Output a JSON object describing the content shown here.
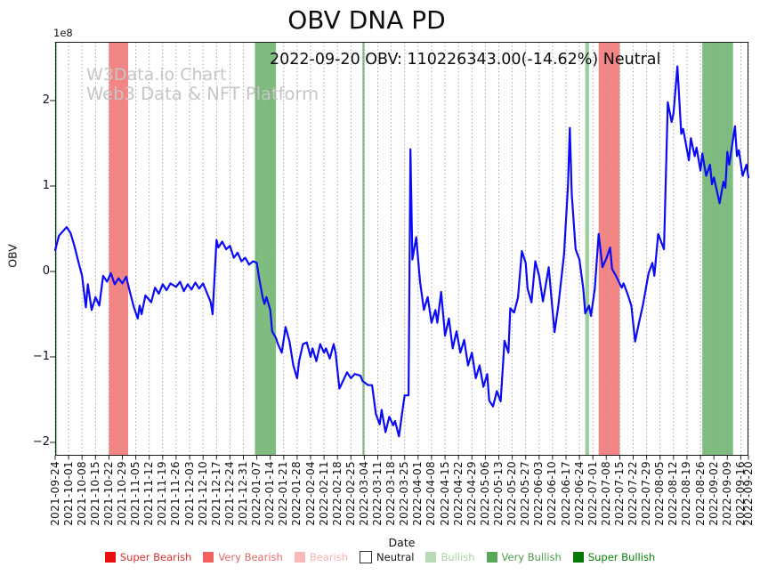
{
  "header": {
    "title": "OBV DNA PD",
    "subtitle": "2022-09-20 OBV: 110226343.00(-14.62%) Neutral"
  },
  "watermark": {
    "line1": "W3Data.io Chart",
    "line2": "Web3 Data & NFT Platform"
  },
  "chart_data": {
    "type": "line",
    "title": "OBV DNA PD",
    "subtitle": "2022-09-20 OBV: 110226343.00(-14.62%) Neutral",
    "xlabel": "Date",
    "ylabel": "OBV",
    "y_offset_label": "1e8",
    "y_units": "1e8",
    "ylim": [
      -2.16,
      2.69
    ],
    "yticks": [
      -2,
      -1,
      0,
      1,
      2
    ],
    "grid": "vertical-dotted",
    "grid_color": "#999999",
    "x_start": "2021-09-24",
    "x_end": "2022-09-20",
    "xtick_labels": [
      "2021-09-24",
      "2021-10-01",
      "2021-10-08",
      "2021-10-15",
      "2021-10-22",
      "2021-10-29",
      "2021-11-05",
      "2021-11-12",
      "2021-11-19",
      "2021-11-26",
      "2021-12-03",
      "2021-12-10",
      "2021-12-17",
      "2021-12-24",
      "2021-12-31",
      "2022-01-07",
      "2022-01-14",
      "2022-01-21",
      "2022-01-28",
      "2022-02-04",
      "2022-02-11",
      "2022-02-18",
      "2022-02-25",
      "2022-03-04",
      "2022-03-11",
      "2022-03-18",
      "2022-03-25",
      "2022-04-01",
      "2022-04-08",
      "2022-04-15",
      "2022-04-22",
      "2022-04-29",
      "2022-05-06",
      "2022-05-13",
      "2022-05-20",
      "2022-05-27",
      "2022-06-03",
      "2022-06-10",
      "2022-06-17",
      "2022-06-24",
      "2022-07-01",
      "2022-07-08",
      "2022-07-15",
      "2022-07-22",
      "2022-07-29",
      "2022-08-05",
      "2022-08-12",
      "2022-08-19",
      "2022-08-26",
      "2022-09-02",
      "2022-09-09",
      "2022-09-16",
      "2022-09-20"
    ],
    "line_color": "#0b0bf5",
    "series": [
      {
        "name": "OBV",
        "points": [
          [
            "2021-09-24",
            0.25
          ],
          [
            "2021-09-26",
            0.42
          ],
          [
            "2021-09-30",
            0.52
          ],
          [
            "2021-10-02",
            0.45
          ],
          [
            "2021-10-04",
            0.3
          ],
          [
            "2021-10-06",
            0.12
          ],
          [
            "2021-10-08",
            -0.05
          ],
          [
            "2021-10-10",
            -0.42
          ],
          [
            "2021-10-11",
            -0.15
          ],
          [
            "2021-10-13",
            -0.45
          ],
          [
            "2021-10-15",
            -0.3
          ],
          [
            "2021-10-17",
            -0.4
          ],
          [
            "2021-10-19",
            -0.05
          ],
          [
            "2021-10-21",
            -0.12
          ],
          [
            "2021-10-23",
            -0.02
          ],
          [
            "2021-10-25",
            -0.15
          ],
          [
            "2021-10-27",
            -0.08
          ],
          [
            "2021-10-29",
            -0.14
          ],
          [
            "2021-10-31",
            -0.06
          ],
          [
            "2021-11-02",
            -0.25
          ],
          [
            "2021-11-04",
            -0.42
          ],
          [
            "2021-11-06",
            -0.55
          ],
          [
            "2021-11-07",
            -0.4
          ],
          [
            "2021-11-08",
            -0.5
          ],
          [
            "2021-11-10",
            -0.28
          ],
          [
            "2021-11-13",
            -0.36
          ],
          [
            "2021-11-15",
            -0.19
          ],
          [
            "2021-11-17",
            -0.26
          ],
          [
            "2021-11-19",
            -0.15
          ],
          [
            "2021-11-21",
            -0.22
          ],
          [
            "2021-11-23",
            -0.14
          ],
          [
            "2021-11-26",
            -0.18
          ],
          [
            "2021-11-28",
            -0.12
          ],
          [
            "2021-11-30",
            -0.23
          ],
          [
            "2021-12-02",
            -0.15
          ],
          [
            "2021-12-04",
            -0.21
          ],
          [
            "2021-12-06",
            -0.13
          ],
          [
            "2021-12-08",
            -0.2
          ],
          [
            "2021-12-10",
            -0.14
          ],
          [
            "2021-12-12",
            -0.25
          ],
          [
            "2021-12-14",
            -0.36
          ],
          [
            "2021-12-15",
            -0.5
          ],
          [
            "2021-12-17",
            0.37
          ],
          [
            "2021-12-18",
            0.28
          ],
          [
            "2021-12-20",
            0.35
          ],
          [
            "2021-12-22",
            0.26
          ],
          [
            "2021-12-24",
            0.3
          ],
          [
            "2021-12-26",
            0.16
          ],
          [
            "2021-12-28",
            0.22
          ],
          [
            "2021-12-30",
            0.12
          ],
          [
            "2022-01-01",
            0.16
          ],
          [
            "2022-01-03",
            0.08
          ],
          [
            "2022-01-05",
            0.12
          ],
          [
            "2022-01-07",
            0.1
          ],
          [
            "2022-01-08",
            -0.05
          ],
          [
            "2022-01-10",
            -0.3
          ],
          [
            "2022-01-11",
            -0.38
          ],
          [
            "2022-01-12",
            -0.3
          ],
          [
            "2022-01-14",
            -0.45
          ],
          [
            "2022-01-15",
            -0.7
          ],
          [
            "2022-01-17",
            -0.78
          ],
          [
            "2022-01-18",
            -0.85
          ],
          [
            "2022-01-20",
            -0.95
          ],
          [
            "2022-01-22",
            -0.65
          ],
          [
            "2022-01-24",
            -0.82
          ],
          [
            "2022-01-26",
            -1.1
          ],
          [
            "2022-01-28",
            -1.25
          ],
          [
            "2022-01-29",
            -1.05
          ],
          [
            "2022-01-31",
            -0.85
          ],
          [
            "2022-02-02",
            -0.83
          ],
          [
            "2022-02-04",
            -1.0
          ],
          [
            "2022-02-05",
            -0.9
          ],
          [
            "2022-02-07",
            -1.05
          ],
          [
            "2022-02-09",
            -0.85
          ],
          [
            "2022-02-11",
            -0.95
          ],
          [
            "2022-02-12",
            -0.9
          ],
          [
            "2022-02-14",
            -1.02
          ],
          [
            "2022-02-16",
            -0.85
          ],
          [
            "2022-02-17",
            -0.95
          ],
          [
            "2022-02-19",
            -1.37
          ],
          [
            "2022-02-23",
            -1.18
          ],
          [
            "2022-02-25",
            -1.25
          ],
          [
            "2022-02-27",
            -1.2
          ],
          [
            "2022-03-02",
            -1.22
          ],
          [
            "2022-03-03",
            -1.28
          ],
          [
            "2022-03-06",
            -1.33
          ],
          [
            "2022-03-08",
            -1.33
          ],
          [
            "2022-03-10",
            -1.67
          ],
          [
            "2022-03-12",
            -1.79
          ],
          [
            "2022-03-13",
            -1.62
          ],
          [
            "2022-03-15",
            -1.88
          ],
          [
            "2022-03-17",
            -1.7
          ],
          [
            "2022-03-19",
            -1.8
          ],
          [
            "2022-03-20",
            -1.75
          ],
          [
            "2022-03-22",
            -1.93
          ],
          [
            "2022-03-24",
            -1.6
          ],
          [
            "2022-03-25",
            -1.45
          ],
          [
            "2022-03-27",
            -1.45
          ],
          [
            "2022-03-28",
            1.43
          ],
          [
            "2022-03-29",
            0.14
          ],
          [
            "2022-03-31",
            0.4
          ],
          [
            "2022-04-02",
            -0.12
          ],
          [
            "2022-04-04",
            -0.45
          ],
          [
            "2022-04-06",
            -0.3
          ],
          [
            "2022-04-08",
            -0.6
          ],
          [
            "2022-04-10",
            -0.45
          ],
          [
            "2022-04-11",
            -0.6
          ],
          [
            "2022-04-13",
            -0.24
          ],
          [
            "2022-04-15",
            -0.75
          ],
          [
            "2022-04-17",
            -0.55
          ],
          [
            "2022-04-19",
            -0.9
          ],
          [
            "2022-04-21",
            -0.7
          ],
          [
            "2022-04-23",
            -0.95
          ],
          [
            "2022-04-25",
            -0.8
          ],
          [
            "2022-04-27",
            -1.1
          ],
          [
            "2022-04-29",
            -0.95
          ],
          [
            "2022-05-01",
            -1.25
          ],
          [
            "2022-05-03",
            -1.1
          ],
          [
            "2022-05-05",
            -1.35
          ],
          [
            "2022-05-07",
            -1.2
          ],
          [
            "2022-05-08",
            -1.51
          ],
          [
            "2022-05-10",
            -1.58
          ],
          [
            "2022-05-12",
            -1.4
          ],
          [
            "2022-05-14",
            -1.52
          ],
          [
            "2022-05-16",
            -0.81
          ],
          [
            "2022-05-18",
            -0.95
          ],
          [
            "2022-05-19",
            -0.43
          ],
          [
            "2022-05-21",
            -0.48
          ],
          [
            "2022-05-23",
            -0.3
          ],
          [
            "2022-05-25",
            0.24
          ],
          [
            "2022-05-27",
            0.1
          ],
          [
            "2022-05-28",
            -0.2
          ],
          [
            "2022-05-30",
            -0.36
          ],
          [
            "2022-06-01",
            0.12
          ],
          [
            "2022-06-03",
            -0.05
          ],
          [
            "2022-06-05",
            -0.35
          ],
          [
            "2022-06-08",
            0.05
          ],
          [
            "2022-06-09",
            -0.2
          ],
          [
            "2022-06-11",
            -0.71
          ],
          [
            "2022-06-13",
            -0.4
          ],
          [
            "2022-06-16",
            0.2
          ],
          [
            "2022-06-18",
            1.0
          ],
          [
            "2022-06-19",
            1.68
          ],
          [
            "2022-06-20",
            0.9
          ],
          [
            "2022-06-22",
            0.26
          ],
          [
            "2022-06-24",
            0.14
          ],
          [
            "2022-06-26",
            -0.2
          ],
          [
            "2022-06-27",
            -0.49
          ],
          [
            "2022-06-29",
            -0.4
          ],
          [
            "2022-06-30",
            -0.52
          ],
          [
            "2022-07-02",
            -0.2
          ],
          [
            "2022-07-04",
            0.44
          ],
          [
            "2022-07-06",
            0.05
          ],
          [
            "2022-07-08",
            0.15
          ],
          [
            "2022-07-10",
            0.28
          ],
          [
            "2022-07-11",
            0.03
          ],
          [
            "2022-07-13",
            -0.05
          ],
          [
            "2022-07-16",
            -0.19
          ],
          [
            "2022-07-17",
            -0.14
          ],
          [
            "2022-07-19",
            -0.26
          ],
          [
            "2022-07-21",
            -0.4
          ],
          [
            "2022-07-23",
            -0.82
          ],
          [
            "2022-07-25",
            -0.6
          ],
          [
            "2022-07-27",
            -0.4
          ],
          [
            "2022-07-30",
            -0.02
          ],
          [
            "2022-08-01",
            0.1
          ],
          [
            "2022-08-02",
            -0.05
          ],
          [
            "2022-08-04",
            0.44
          ],
          [
            "2022-08-07",
            0.26
          ],
          [
            "2022-08-09",
            1.98
          ],
          [
            "2022-08-11",
            1.75
          ],
          [
            "2022-08-12",
            1.85
          ],
          [
            "2022-08-14",
            2.4
          ],
          [
            "2022-08-16",
            1.61
          ],
          [
            "2022-08-17",
            1.67
          ],
          [
            "2022-08-20",
            1.3
          ],
          [
            "2022-08-21",
            1.56
          ],
          [
            "2022-08-23",
            1.35
          ],
          [
            "2022-08-24",
            1.45
          ],
          [
            "2022-08-26",
            1.18
          ],
          [
            "2022-08-27",
            1.38
          ],
          [
            "2022-08-29",
            1.12
          ],
          [
            "2022-08-31",
            1.25
          ],
          [
            "2022-09-01",
            1.02
          ],
          [
            "2022-09-02",
            1.1
          ],
          [
            "2022-09-05",
            0.8
          ],
          [
            "2022-09-07",
            1.05
          ],
          [
            "2022-09-08",
            0.98
          ],
          [
            "2022-09-09",
            1.4
          ],
          [
            "2022-09-10",
            1.25
          ],
          [
            "2022-09-13",
            1.7
          ],
          [
            "2022-09-14",
            1.35
          ],
          [
            "2022-09-15",
            1.42
          ],
          [
            "2022-09-17",
            1.12
          ],
          [
            "2022-09-19",
            1.25
          ],
          [
            "2022-09-20",
            1.1
          ]
        ]
      }
    ],
    "bands": [
      {
        "from": "2021-09-24",
        "to": "2021-09-25",
        "signal": "Bullish",
        "color": "#9ccf9c"
      },
      {
        "from": "2021-10-22",
        "to": "2021-11-01",
        "signal": "Very Bearish",
        "color": "#f48585"
      },
      {
        "from": "2022-01-06",
        "to": "2022-01-17",
        "signal": "Very Bullish",
        "color": "#7fbc7f"
      },
      {
        "from": "2022-03-03",
        "to": "2022-03-04",
        "signal": "Very Bullish",
        "color": "#7fbc7f"
      },
      {
        "from": "2022-06-27",
        "to": "2022-06-29",
        "signal": "Bullish",
        "color": "#9ccf9c"
      },
      {
        "from": "2022-07-04",
        "to": "2022-07-15",
        "signal": "Very Bearish",
        "color": "#f48585"
      },
      {
        "from": "2022-08-27",
        "to": "2022-09-12",
        "signal": "Very Bullish",
        "color": "#7fbc7f"
      }
    ]
  },
  "legend": {
    "items": [
      {
        "label": "Super Bearish",
        "swatch": "#ea0e0e",
        "text_color": "#dc3030",
        "outline": false
      },
      {
        "label": "Very Bearish",
        "swatch": "#f15f5f",
        "text_color": "#e46868",
        "outline": false
      },
      {
        "label": "Bearish",
        "swatch": "#f7b9b9",
        "text_color": "#f3b1b1",
        "outline": false
      },
      {
        "label": "Neutral",
        "swatch": "#ffffff",
        "text_color": "#151515",
        "outline": true
      },
      {
        "label": "Bullish",
        "swatch": "#b5dab5",
        "text_color": "#abd3ab",
        "outline": false
      },
      {
        "label": "Very Bullish",
        "swatch": "#55a855",
        "text_color": "#4d9f4d",
        "outline": false
      },
      {
        "label": "Super Bullish",
        "swatch": "#077807",
        "text_color": "#087f08",
        "outline": false
      }
    ]
  }
}
